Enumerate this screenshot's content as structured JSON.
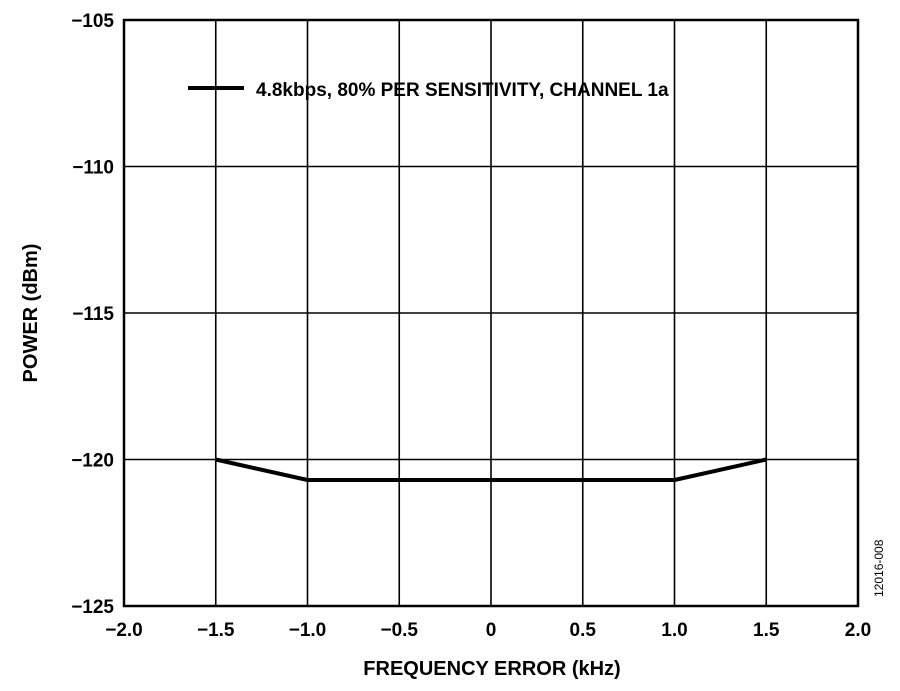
{
  "chart_data": {
    "type": "line",
    "xlabel": "FREQUENCY ERROR (kHz)",
    "ylabel": "POWER (dBm)",
    "xlim": [
      -2.0,
      2.0
    ],
    "ylim": [
      -125,
      -105
    ],
    "x_ticks": [
      -2.0,
      -1.5,
      -1.0,
      -0.5,
      0,
      0.5,
      1.0,
      1.5,
      2.0
    ],
    "x_tick_labels": [
      "−2.0",
      "−1.5",
      "−1.0",
      "−0.5",
      "0",
      "0.5",
      "1.0",
      "1.5",
      "2.0"
    ],
    "y_ticks": [
      -125,
      -120,
      -115,
      -110,
      -105
    ],
    "y_tick_labels": [
      "−125",
      "−120",
      "−115",
      "−110",
      "−105"
    ],
    "grid": true,
    "legend_position": "top",
    "series": [
      {
        "name": "4.8kbps, 80% PER SENSITIVITY, CHANNEL 1a",
        "color": "#000000",
        "x": [
          -1.5,
          -1.0,
          -0.5,
          0,
          0.5,
          1.0,
          1.5
        ],
        "y": [
          -120.0,
          -120.7,
          -120.7,
          -120.7,
          -120.7,
          -120.7,
          -120.0
        ]
      }
    ],
    "figure_id": "12016-008"
  }
}
